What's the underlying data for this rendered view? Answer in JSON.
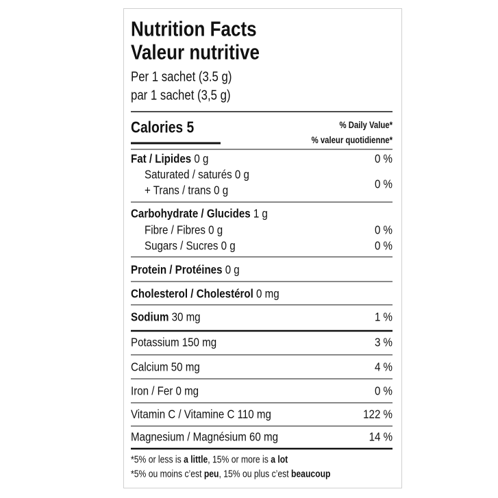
{
  "title": [
    "Nutrition Facts",
    "Valeur nutritive"
  ],
  "serving": [
    "Per 1 sachet (3.5 g)",
    "par 1 sachet (3,5 g)"
  ],
  "calories": "Calories 5",
  "daily_value": [
    "% Daily Value*",
    "% valeur quotidienne*"
  ],
  "nutrients": {
    "fat": {
      "label": "Fat / Lipides",
      "amount": "0 g",
      "dv": "0 %"
    },
    "saturated_trans": {
      "saturated": "Saturated / saturés 0 g",
      "trans": "+ Trans / trans 0 g",
      "dv": "0 %"
    },
    "carbohydrate": {
      "label": "Carbohydrate / Glucides",
      "amount": "1 g"
    },
    "fibre": {
      "label": "Fibre / Fibres 0 g",
      "dv": "0 %"
    },
    "sugars": {
      "label": "Sugars / Sucres 0 g",
      "dv": "0 %"
    },
    "protein": {
      "label": "Protein / Protéines",
      "amount": "0 g"
    },
    "cholesterol": {
      "label": "Cholesterol / Cholestérol",
      "amount": "0 mg"
    },
    "sodium": {
      "label": "Sodium",
      "amount": "30 mg",
      "dv": "1 %"
    }
  },
  "vitamins_minerals": [
    {
      "label": "Potassium 150 mg",
      "dv": "3 %"
    },
    {
      "label": "Calcium 50 mg",
      "dv": "4 %"
    },
    {
      "label": "Iron / Fer 0 mg",
      "dv": "0 %"
    },
    {
      "label": "Vitamin C / Vitamine C 110 mg",
      "dv": "122 %"
    },
    {
      "label": "Magnesium / Magnésium 60 mg",
      "dv": "14 %"
    }
  ],
  "footnote": [
    [
      "*5% or less is ",
      "a little",
      ", 15% or more is ",
      "a lot"
    ],
    [
      "*5% ou moins c’est ",
      "peu",
      ", 15% ou plus c’est ",
      "beaucoup"
    ]
  ]
}
